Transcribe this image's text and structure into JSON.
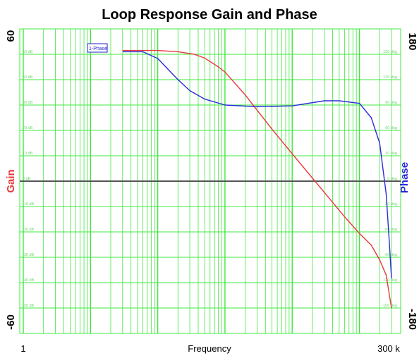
{
  "chart_data": {
    "type": "line",
    "title": "Loop Response Gain and Phase",
    "xlabel": "Frequency",
    "x_scale": "log",
    "xlim": [
      1,
      300000
    ],
    "x_tick_labels": {
      "left": "1",
      "right": "300 k"
    },
    "y_left": {
      "label": "Gain",
      "min": -60,
      "max": 60,
      "min_label": "-60",
      "max_label": "60",
      "color": "#e8383b"
    },
    "y_right": {
      "label": "Phase",
      "min": -180,
      "max": 180,
      "min_label": "-180",
      "max_label": "180",
      "color": "#2b2bd9"
    },
    "grid": true,
    "grid_color": "#3fe83f",
    "legend": {
      "label": "1-Phase",
      "position": "top-left"
    },
    "series": [
      {
        "axis": "left",
        "color": "#e8383b",
        "x": [
          30,
          100,
          200,
          350,
          500,
          800,
          1000,
          2000,
          3000,
          5000,
          10000,
          30000,
          60000,
          100000,
          150000,
          200000,
          250000,
          300000
        ],
        "y": [
          51.5,
          51.5,
          51,
          50,
          48.5,
          45,
          43,
          34,
          28,
          20.5,
          10.8,
          -4.4,
          -14,
          -20.6,
          -25.2,
          -31,
          -37,
          -50
        ]
      },
      {
        "axis": "right",
        "color": "#2b2bd9",
        "x": [
          30,
          60,
          100,
          200,
          300,
          500,
          1000,
          3000,
          10000,
          30000,
          50000,
          100000,
          150000,
          200000,
          250000,
          280000,
          300000
        ],
        "y": [
          153,
          153,
          145,
          120,
          107,
          97,
          90,
          88,
          89,
          95,
          95,
          92,
          75,
          45,
          -15,
          -75,
          -115
        ]
      }
    ]
  }
}
